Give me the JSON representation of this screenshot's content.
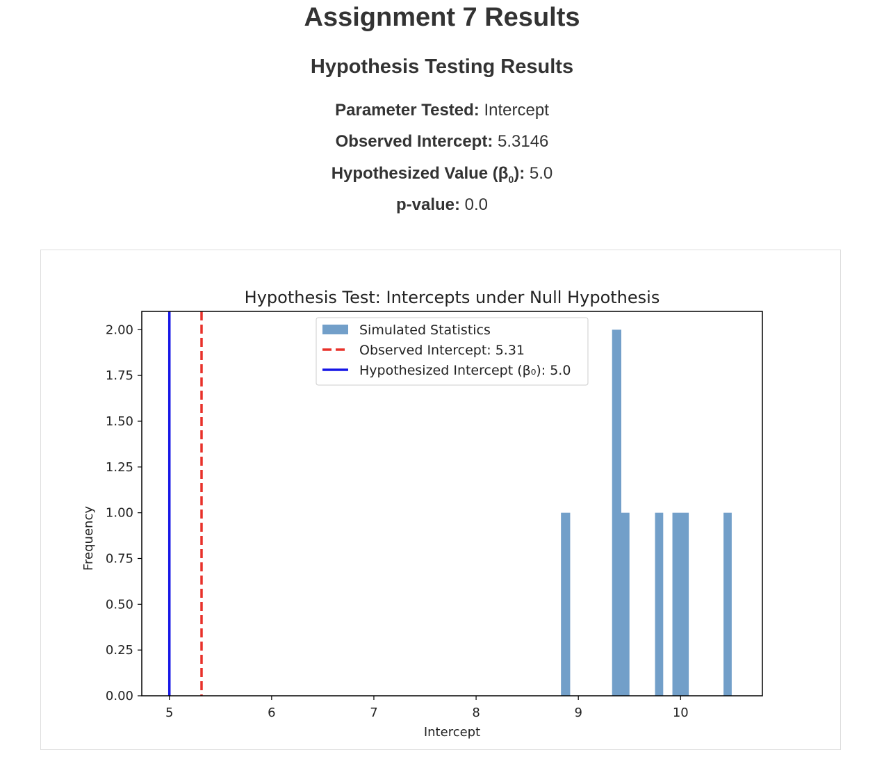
{
  "page": {
    "title": "Assignment 7 Results",
    "section_title": "Hypothesis Testing Results"
  },
  "results": {
    "parameter_label": "Parameter Tested:",
    "parameter_value": "Intercept",
    "observed_label": "Observed Intercept:",
    "observed_value": "5.3146",
    "hypothesized_label_prefix": "Hypothesized Value (β",
    "hypothesized_label_sub": "0",
    "hypothesized_label_suffix": "):",
    "hypothesized_value": "5.0",
    "pvalue_label": "p-value:",
    "pvalue_value": "0.0"
  },
  "colors": {
    "bar": "#729fc9",
    "observed_line": "#e8312a",
    "hypothesized_line": "#1616e6"
  },
  "chart_data": {
    "type": "bar",
    "title": "Hypothesis Test: Intercepts under Null Hypothesis",
    "xlabel": "Intercept",
    "ylabel": "Frequency",
    "xlim": [
      4.73,
      10.8
    ],
    "ylim": [
      0,
      2.1
    ],
    "xticks": [
      5,
      6,
      7,
      8,
      9,
      10
    ],
    "xtick_labels": [
      "5",
      "6",
      "7",
      "8",
      "9",
      "10"
    ],
    "yticks": [
      0,
      0.25,
      0.5,
      0.75,
      1.0,
      1.25,
      1.5,
      1.75,
      2.0
    ],
    "ytick_labels": [
      "0.00",
      "0.25",
      "0.50",
      "0.75",
      "1.00",
      "1.25",
      "1.50",
      "1.75",
      "2.00"
    ],
    "legend_position": "top-center",
    "bins": [
      {
        "x0": 8.83,
        "x1": 8.92,
        "count": 1
      },
      {
        "x0": 9.33,
        "x1": 9.42,
        "count": 2
      },
      {
        "x0": 9.42,
        "x1": 9.5,
        "count": 1
      },
      {
        "x0": 9.75,
        "x1": 9.83,
        "count": 1
      },
      {
        "x0": 9.92,
        "x1": 10.08,
        "count": 1
      },
      {
        "x0": 10.42,
        "x1": 10.5,
        "count": 1
      }
    ],
    "vlines": [
      {
        "name": "Observed Intercept: 5.31",
        "x": 5.3146,
        "style": "dashed"
      },
      {
        "name": "Hypothesized Intercept (β₀): 5.0",
        "x": 5.0,
        "style": "solid"
      }
    ],
    "legend": [
      "Simulated Statistics",
      "Observed Intercept: 5.31",
      "Hypothesized Intercept (β₀): 5.0"
    ]
  }
}
